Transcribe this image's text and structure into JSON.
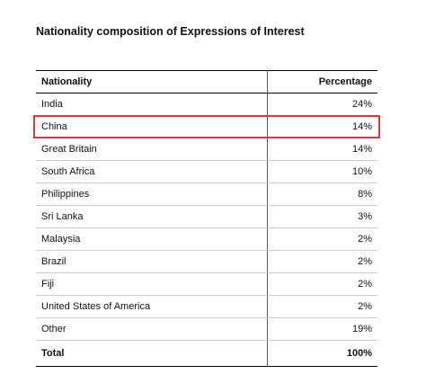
{
  "header": {
    "title": "Nationality composition of Expressions of Interest"
  },
  "table": {
    "columns": [
      "Nationality",
      "Percentage"
    ],
    "rows": [
      [
        "India",
        "24%"
      ],
      [
        "China",
        "14%"
      ],
      [
        "Great Britain",
        "14%"
      ],
      [
        "South Africa",
        "10%"
      ],
      [
        "Philippines",
        "8%"
      ],
      [
        "Sri Lanka",
        "3%"
      ],
      [
        "Malaysia",
        "2%"
      ],
      [
        "Brazil",
        "2%"
      ],
      [
        "Fiji",
        "2%"
      ],
      [
        "United States of America",
        "2%"
      ],
      [
        "Other",
        "19%"
      ]
    ],
    "total": [
      "Total",
      "100%"
    ]
  }
}
